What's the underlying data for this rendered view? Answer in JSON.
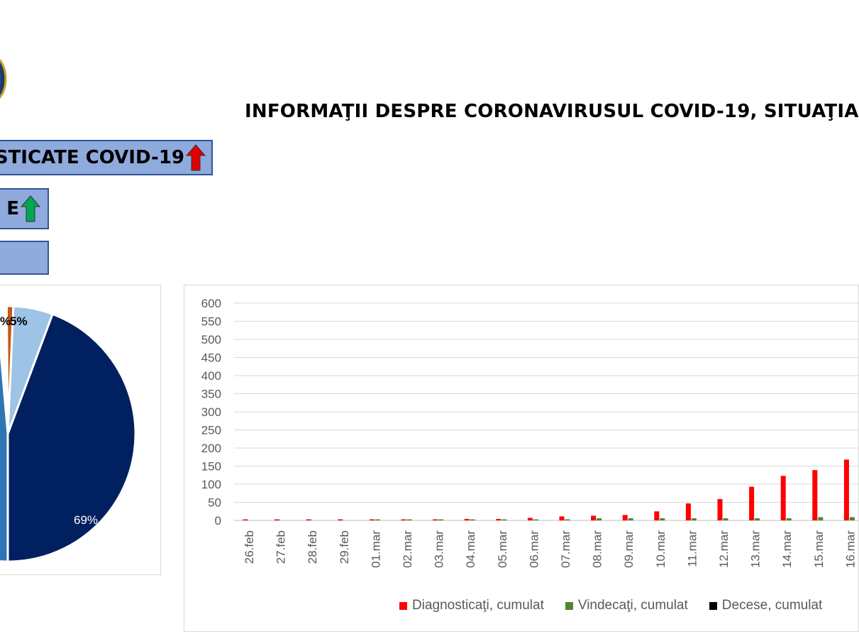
{
  "header": {
    "title": "INFORMAŢII DESPRE CORONAVIRUSUL COVID-19, SITUAŢIA"
  },
  "stat_boxes": [
    {
      "label": "STICATE COVID-19",
      "arrow": "up",
      "arrow_color": "#e00000"
    },
    {
      "label": "E",
      "arrow": "up",
      "arrow_color": "#00a651"
    },
    {
      "label": ""
    }
  ],
  "colors": {
    "diagnosed": "#ff0000",
    "recovered": "#548235",
    "deaths": "#000000",
    "box_fill": "#8faadc",
    "box_border": "#2f5597"
  },
  "chart_data": [
    {
      "type": "pie",
      "slices": [
        {
          "value": 69,
          "label": "69%",
          "color": "#002060"
        },
        {
          "value": 5,
          "label": "5%",
          "color": "#9dc3e6"
        },
        {
          "value": 5,
          "label": "%",
          "color": "#c55a11"
        }
      ]
    },
    {
      "type": "bar",
      "categories": [
        "26.feb",
        "27.feb",
        "28.feb",
        "29.feb",
        "01.mar",
        "02.mar",
        "03.mar",
        "04.mar",
        "05.mar",
        "06.mar",
        "07.mar",
        "08.mar",
        "09.mar",
        "10.mar",
        "11.mar",
        "12.mar",
        "13.mar",
        "14.mar",
        "15.mar",
        "16.mar"
      ],
      "series": [
        {
          "name": "Diagnosticaţi, cumulat",
          "color": "#ff0000",
          "values": [
            1,
            1,
            3,
            3,
            3,
            3,
            3,
            4,
            4,
            7,
            11,
            13,
            15,
            25,
            47,
            59,
            93,
            123,
            139,
            168
          ]
        },
        {
          "name": "Vindecaţi, cumulat",
          "color": "#548235",
          "values": [
            0,
            0,
            0,
            0,
            1,
            1,
            1,
            1,
            1,
            2,
            3,
            6,
            6,
            6,
            6,
            6,
            6,
            6,
            9,
            9
          ]
        },
        {
          "name": "Decese, cumulat",
          "color": "#000000",
          "values": [
            0,
            0,
            0,
            0,
            0,
            0,
            0,
            0,
            0,
            0,
            0,
            0,
            0,
            0,
            0,
            0,
            0,
            0,
            0,
            0
          ]
        }
      ],
      "yticks": [
        0,
        50,
        100,
        150,
        200,
        250,
        300,
        350,
        400,
        450,
        500,
        550,
        600
      ],
      "ylim": [
        0,
        600
      ],
      "grid": true,
      "legend_position": "bottom"
    }
  ]
}
